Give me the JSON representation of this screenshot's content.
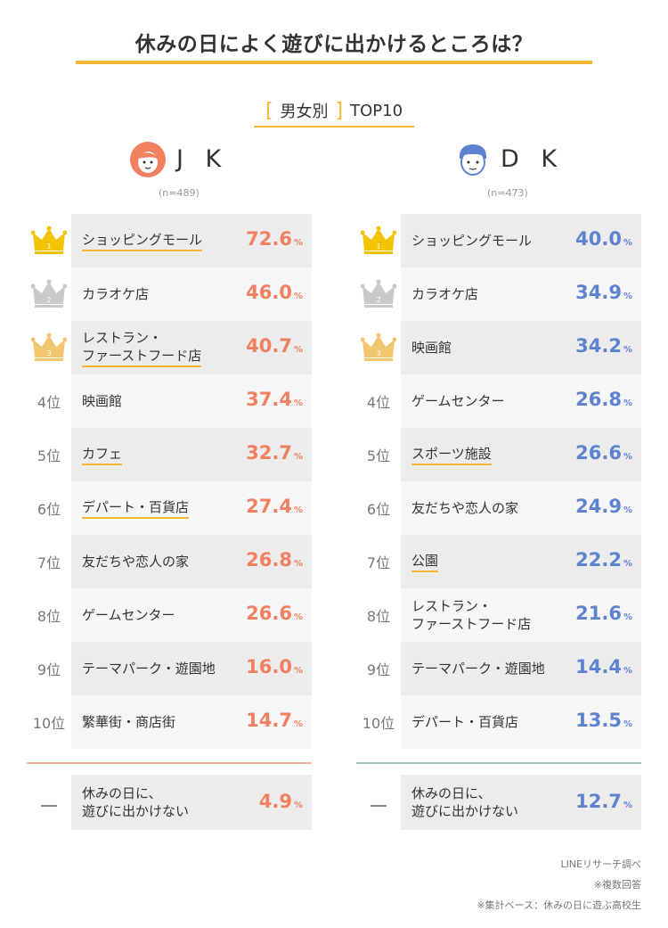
{
  "title": "休みの日によく遊びに出かけるところは？",
  "subtitle": {
    "open": "[",
    "text": "男女別",
    "close": "]",
    "suffix": "TOP10"
  },
  "colors": {
    "accent": "#f5b735",
    "jk": "#f08060",
    "dk": "#5d83d0",
    "silver": "#c9c9c9",
    "bronze": "#f2c66e",
    "gold": "#f5c400"
  },
  "groups": [
    {
      "name": "J K",
      "n": "(n=489)",
      "rows": [
        {
          "rank": "1",
          "label": "ショッピングモール",
          "value": "72.6",
          "unit": "%",
          "underline": true
        },
        {
          "rank": "2",
          "label": "カラオケ店",
          "value": "46.0",
          "unit": "%",
          "underline": false
        },
        {
          "rank": "3",
          "label": "レストラン・\nファーストフード店",
          "value": "40.7",
          "unit": "%",
          "underline": true
        },
        {
          "rank": "4位",
          "label": "映画館",
          "value": "37.4",
          "unit": "%",
          "underline": false
        },
        {
          "rank": "5位",
          "label": "カフェ",
          "value": "32.7",
          "unit": "%",
          "underline": true
        },
        {
          "rank": "6位",
          "label": "デパート・百貨店",
          "value": "27.4",
          "unit": "%",
          "underline": true
        },
        {
          "rank": "7位",
          "label": "友だちや恋人の家",
          "value": "26.8",
          "unit": "%",
          "underline": false
        },
        {
          "rank": "8位",
          "label": "ゲームセンター",
          "value": "26.6",
          "unit": "%",
          "underline": false
        },
        {
          "rank": "9位",
          "label": "テーマパーク・遊園地",
          "value": "16.0",
          "unit": "%",
          "underline": false
        },
        {
          "rank": "10位",
          "label": "繁華街・商店街",
          "value": "14.7",
          "unit": "%",
          "underline": false
        }
      ],
      "bottom": {
        "label": "休みの日に、\n遊びに出かけない",
        "value": "4.9",
        "unit": "%"
      }
    },
    {
      "name": "D K",
      "n": "(n=473)",
      "rows": [
        {
          "rank": "1",
          "label": "ショッピングモール",
          "value": "40.0",
          "unit": "%",
          "underline": false
        },
        {
          "rank": "2",
          "label": "カラオケ店",
          "value": "34.9",
          "unit": "%",
          "underline": false
        },
        {
          "rank": "3",
          "label": "映画館",
          "value": "34.2",
          "unit": "%",
          "underline": false
        },
        {
          "rank": "4位",
          "label": "ゲームセンター",
          "value": "26.8",
          "unit": "%",
          "underline": false
        },
        {
          "rank": "5位",
          "label": "スポーツ施設",
          "value": "26.6",
          "unit": "%",
          "underline": true
        },
        {
          "rank": "6位",
          "label": "友だちや恋人の家",
          "value": "24.9",
          "unit": "%",
          "underline": false
        },
        {
          "rank": "7位",
          "label": "公園",
          "value": "22.2",
          "unit": "%",
          "underline": true
        },
        {
          "rank": "8位",
          "label": "レストラン・\nファーストフード店",
          "value": "21.6",
          "unit": "%",
          "underline": false
        },
        {
          "rank": "9位",
          "label": "テーマパーク・遊園地",
          "value": "14.4",
          "unit": "%",
          "underline": false
        },
        {
          "rank": "10位",
          "label": "デパート・百貨店",
          "value": "13.5",
          "unit": "%",
          "underline": false
        }
      ],
      "bottom": {
        "label": "休みの日に、\n遊びに出かけない",
        "value": "12.7",
        "unit": "%"
      }
    }
  ],
  "notes": [
    "LINEリサーチ調べ",
    "※複数回答",
    "※集計ベース：休みの日に遊ぶ高校生"
  ],
  "chart_data": {
    "type": "table",
    "title": "休みの日によく遊びに出かけるところは？",
    "subtitle": "[男女別] TOP10",
    "series": [
      {
        "name": "J K",
        "n": "(n=489)",
        "categories": [
          "ショッピングモール",
          "カラオケ店",
          "レストラン・ファーストフード店",
          "映画館",
          "カフェ",
          "デパート・百貨店",
          "友だちや恋人の家",
          "ゲームセンター",
          "テーマパーク・遊園地",
          "繁華街・商店街",
          "休みの日に、遊びに出かけない"
        ],
        "values": [
          72.6,
          46.0,
          40.7,
          37.4,
          32.7,
          27.4,
          26.8,
          26.6,
          16.0,
          14.7,
          4.9
        ]
      },
      {
        "name": "D K",
        "n": "(n=473)",
        "categories": [
          "ショッピングモール",
          "カラオケ店",
          "映画館",
          "ゲームセンター",
          "スポーツ施設",
          "友だちや恋人の家",
          "公園",
          "レストラン・ファーストフード店",
          "テーマパーク・遊園地",
          "デパート・百貨店",
          "休みの日に、遊びに出かけない"
        ],
        "values": [
          40.0,
          34.9,
          34.2,
          26.8,
          26.6,
          24.9,
          22.2,
          21.6,
          14.4,
          13.5,
          12.7
        ]
      }
    ]
  }
}
